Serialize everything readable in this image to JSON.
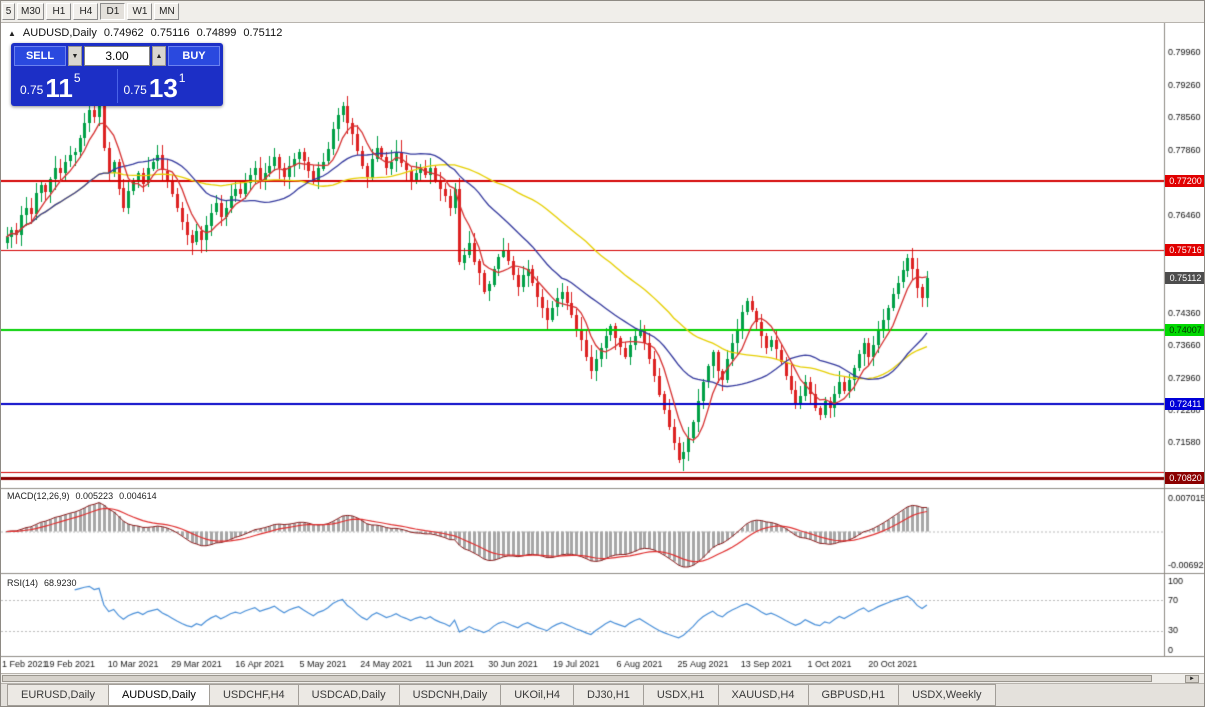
{
  "toolbar": {
    "timeframes": [
      "5",
      "M30",
      "H1",
      "H4",
      "D1",
      "W1",
      "MN"
    ],
    "active": "D1"
  },
  "header": {
    "collapse_icon": "▲",
    "symbol": "AUDUSD,Daily",
    "open": "0.74962",
    "high": "0.75116",
    "low": "0.74899",
    "close": "0.75112"
  },
  "one_click": {
    "sell_label": "SELL",
    "buy_label": "BUY",
    "volume": "3.00",
    "spin_down": "▼",
    "spin_up": "▲",
    "sell_price": {
      "prefix": "0.75",
      "big": "11",
      "sup": "5"
    },
    "buy_price": {
      "prefix": "0.75",
      "big": "13",
      "sup": "1"
    },
    "panel_color": "#1c2fc6",
    "button_color": "#2a49df"
  },
  "chart_data": {
    "type": "candlestick",
    "symbol": "AUDUSD",
    "timeframe": "Daily",
    "price_range": {
      "min": 0.7063,
      "max": 0.8038
    },
    "colors": {
      "candle_up": "#00a046",
      "candle_down": "#dd2222",
      "background": "#ffffff"
    },
    "closes": [
      0.76,
      0.7615,
      0.7605,
      0.7648,
      0.7662,
      0.765,
      0.7695,
      0.7712,
      0.7698,
      0.7725,
      0.7748,
      0.7738,
      0.7762,
      0.7775,
      0.7782,
      0.7812,
      0.7845,
      0.7872,
      0.7858,
      0.7888,
      0.7792,
      0.7738,
      0.7762,
      0.7705,
      0.7662,
      0.7698,
      0.7722,
      0.7738,
      0.7715,
      0.7748,
      0.7762,
      0.7775,
      0.7742,
      0.772,
      0.7692,
      0.7662,
      0.7632,
      0.7605,
      0.7588,
      0.7612,
      0.7592,
      0.7625,
      0.7652,
      0.7672,
      0.7642,
      0.7662,
      0.7688,
      0.7702,
      0.7692,
      0.7715,
      0.7732,
      0.7748,
      0.7722,
      0.7738,
      0.7752,
      0.7772,
      0.7748,
      0.7728,
      0.7752,
      0.7768,
      0.7782,
      0.7762,
      0.7742,
      0.7722,
      0.7748,
      0.7762,
      0.7788,
      0.7832,
      0.7862,
      0.7882,
      0.7845,
      0.7822,
      0.7785,
      0.7752,
      0.7728,
      0.7768,
      0.7792,
      0.7772,
      0.7748,
      0.7762,
      0.7782,
      0.7758,
      0.7742,
      0.7722,
      0.7738,
      0.7748,
      0.7732,
      0.7748,
      0.7722,
      0.7702,
      0.7688,
      0.7662,
      0.7702,
      0.7545,
      0.7562,
      0.7588,
      0.7548,
      0.7522,
      0.7482,
      0.7498,
      0.7532,
      0.7558,
      0.7572,
      0.7548,
      0.7518,
      0.7492,
      0.7518,
      0.7532,
      0.7502,
      0.7472,
      0.7448,
      0.7422,
      0.7448,
      0.7468,
      0.7482,
      0.7458,
      0.7432,
      0.7402,
      0.7378,
      0.7342,
      0.7312,
      0.7338,
      0.7362,
      0.7388,
      0.7408,
      0.7382,
      0.7362,
      0.7342,
      0.7368,
      0.7388,
      0.7402,
      0.7372,
      0.7338,
      0.7302,
      0.7262,
      0.7228,
      0.7192,
      0.7158,
      0.7122,
      0.7138,
      0.7168,
      0.7202,
      0.7248,
      0.7288,
      0.7322,
      0.7352,
      0.7312,
      0.7292,
      0.7338,
      0.7372,
      0.7402,
      0.7438,
      0.7462,
      0.7442,
      0.7418,
      0.7388,
      0.7362,
      0.7378,
      0.7358,
      0.7332,
      0.7302,
      0.7272,
      0.7242,
      0.7258,
      0.7288,
      0.7262,
      0.7232,
      0.7218,
      0.7248,
      0.7232,
      0.7262,
      0.7288,
      0.7268,
      0.7292,
      0.7318,
      0.7348,
      0.7372,
      0.7342,
      0.7368,
      0.7398,
      0.7422,
      0.7448,
      0.7478,
      0.7502,
      0.7528,
      0.7555,
      0.7532,
      0.7492,
      0.7468,
      0.7511
    ],
    "axis_labels": [
      {
        "v": 0.7996,
        "t": "0.79960"
      },
      {
        "v": 0.7926,
        "t": "0.79260"
      },
      {
        "v": 0.7856,
        "t": "0.78560"
      },
      {
        "v": 0.7786,
        "t": "0.77860"
      },
      {
        "v": 0.7646,
        "t": "0.76460"
      },
      {
        "v": 0.7436,
        "t": "0.74360"
      },
      {
        "v": 0.7366,
        "t": "0.73660"
      },
      {
        "v": 0.7296,
        "t": "0.72960"
      },
      {
        "v": 0.7228,
        "t": "0.72280"
      },
      {
        "v": 0.7158,
        "t": "0.71580"
      }
    ],
    "h_lines": [
      {
        "name": "resistance-line-upper",
        "value": 0.772,
        "color": "#d40000",
        "width": 2,
        "tag": "0.77200",
        "tag_bg": "#e00000",
        "tag_fg": "#ffffff"
      },
      {
        "name": "resistance-line-mid",
        "value": 0.75716,
        "color": "#d40000",
        "width": 1,
        "tag": "0.75716",
        "tag_bg": "#e00000",
        "tag_fg": "#ffffff"
      },
      {
        "name": "support-line-green",
        "value": 0.74007,
        "color": "#00cf00",
        "width": 2,
        "tag": "0.74007",
        "tag_bg": "#00d800",
        "tag_fg": "#003300"
      },
      {
        "name": "support-line-blue",
        "value": 0.72411,
        "color": "#0000c8",
        "width": 2,
        "tag": "0.72411",
        "tag_bg": "#0000d8",
        "tag_fg": "#ffffff"
      },
      {
        "name": "lower-red-line",
        "value": 0.7095,
        "color": "#d40000",
        "width": 1
      },
      {
        "name": "support-line-maroon",
        "value": 0.7082,
        "color": "#8b0000",
        "width": 3,
        "tag": "0.70820",
        "tag_bg": "#8b0000",
        "tag_fg": "#ffffff"
      }
    ],
    "current_price": {
      "value": 0.75112,
      "tag": "0.75112",
      "tag_bg": "#4d4d4d",
      "tag_fg": "#ffffff"
    },
    "moving_averages": [
      {
        "period": 45,
        "color": "#e6cf00"
      },
      {
        "period": 22,
        "color": "#353a9e"
      },
      {
        "period": 6,
        "color": "#d63030"
      }
    ],
    "x_label_step": 13,
    "x_labels": [
      "1 Feb 2021",
      "19 Feb 2021",
      "10 Mar 2021",
      "29 Mar 2021",
      "16 Apr 2021",
      "5 May 2021",
      "24 May 2021",
      "11 Jun 2021",
      "30 Jun 2021",
      "19 Jul 2021",
      "6 Aug 2021",
      "25 Aug 2021",
      "13 Sep 2021",
      "1 Oct 2021",
      "20 Oct 2021"
    ],
    "macd": {
      "title": "MACD(12,26,9)",
      "value1": "0.005223",
      "value2": "0.004614",
      "fast": 12,
      "slow": 26,
      "signal_period": 9,
      "axis_top": "0.007015",
      "axis_bottom": "-0.00692",
      "hist_color": "#a6a6a6",
      "line_color": "#8b1a1a",
      "signal_color": "#e03030"
    },
    "rsi": {
      "title": "RSI(14)",
      "value": "68.9230",
      "period": 14,
      "levels": [
        100,
        70,
        30,
        0
      ],
      "line_color": "#4a90d9"
    }
  },
  "scrollbar": {
    "right_arrow": "►"
  },
  "tabs": {
    "active_index": 1,
    "items": [
      {
        "label": "EURUSD,Daily"
      },
      {
        "label": "AUDUSD,Daily"
      },
      {
        "label": "USDCHF,H4"
      },
      {
        "label": "USDCAD,Daily"
      },
      {
        "label": "USDCNH,Daily"
      },
      {
        "label": "UKOil,H4"
      },
      {
        "label": "DJ30,H1"
      },
      {
        "label": "USDX,H1"
      },
      {
        "label": "XAUUSD,H4"
      },
      {
        "label": "GBPUSD,H1"
      },
      {
        "label": "USDX,Weekly"
      }
    ]
  }
}
